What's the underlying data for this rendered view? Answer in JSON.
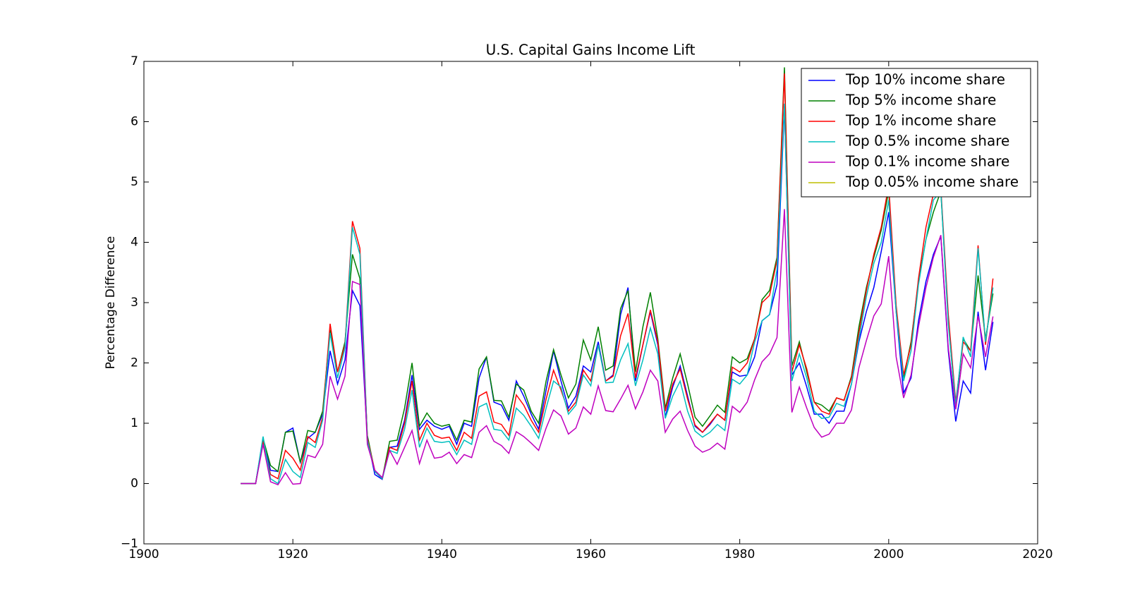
{
  "chart_data": {
    "type": "line",
    "title": "U.S. Capital Gains Income Lift",
    "ylabel": "Percentage Difference",
    "x": [
      1913,
      1914,
      1915,
      1916,
      1917,
      1918,
      1919,
      1920,
      1921,
      1922,
      1923,
      1924,
      1925,
      1926,
      1927,
      1928,
      1929,
      1930,
      1931,
      1932,
      1933,
      1934,
      1935,
      1936,
      1937,
      1938,
      1939,
      1940,
      1941,
      1942,
      1943,
      1944,
      1945,
      1946,
      1947,
      1948,
      1949,
      1950,
      1951,
      1952,
      1953,
      1954,
      1955,
      1956,
      1957,
      1958,
      1959,
      1960,
      1961,
      1962,
      1963,
      1964,
      1965,
      1966,
      1967,
      1968,
      1969,
      1970,
      1971,
      1972,
      1973,
      1974,
      1975,
      1976,
      1977,
      1978,
      1979,
      1980,
      1981,
      1982,
      1983,
      1984,
      1985,
      1986,
      1987,
      1988,
      1989,
      1990,
      1991,
      1992,
      1993,
      1994,
      1995,
      1996,
      1997,
      1998,
      1999,
      2000,
      2001,
      2002,
      2003,
      2004,
      2005,
      2006,
      2007,
      2008,
      2009,
      2010,
      2011,
      2012,
      2013,
      2014
    ],
    "series": [
      {
        "name": "Top 10% income share",
        "color": "#0000ff",
        "values": [
          0,
          0,
          0,
          0.72,
          0.22,
          0.2,
          0.85,
          0.92,
          0.35,
          0.75,
          0.85,
          1.15,
          2.2,
          1.65,
          2.05,
          3.2,
          2.95,
          0.75,
          0.15,
          0.07,
          0.6,
          0.62,
          1.05,
          1.8,
          0.9,
          1.05,
          0.95,
          0.9,
          0.95,
          0.65,
          1.0,
          0.95,
          1.75,
          2.1,
          1.35,
          1.3,
          1.05,
          1.7,
          1.45,
          1.15,
          0.9,
          1.55,
          2.2,
          1.7,
          1.25,
          1.45,
          1.95,
          1.85,
          2.35,
          1.7,
          1.8,
          2.8,
          3.25,
          1.7,
          2.3,
          2.85,
          2.3,
          1.1,
          1.6,
          1.95,
          1.45,
          0.95,
          0.85,
          0.98,
          1.15,
          1.05,
          1.85,
          1.78,
          1.8,
          2.1,
          2.7,
          2.8,
          3.3,
          6.25,
          1.8,
          2.0,
          1.6,
          1.15,
          1.15,
          1.0,
          1.2,
          1.2,
          1.65,
          2.35,
          2.85,
          3.25,
          3.85,
          4.5,
          2.85,
          1.5,
          1.75,
          2.7,
          3.35,
          3.8,
          4.1,
          2.2,
          1.03,
          1.7,
          1.5,
          2.85,
          1.88,
          2.68
        ]
      },
      {
        "name": "Top 5% income share",
        "color": "#008000",
        "values": [
          0,
          0,
          0,
          0.75,
          0.3,
          0.2,
          0.85,
          0.87,
          0.35,
          0.88,
          0.85,
          1.2,
          2.55,
          1.85,
          2.35,
          3.8,
          3.4,
          0.8,
          0.2,
          0.08,
          0.7,
          0.72,
          1.25,
          2.0,
          0.95,
          1.17,
          1.0,
          0.95,
          0.98,
          0.72,
          1.05,
          1.02,
          1.9,
          2.1,
          1.38,
          1.37,
          1.1,
          1.65,
          1.55,
          1.2,
          1.0,
          1.7,
          2.22,
          1.8,
          1.42,
          1.65,
          2.38,
          2.05,
          2.6,
          1.88,
          1.95,
          2.9,
          3.2,
          1.85,
          2.6,
          3.17,
          2.4,
          1.25,
          1.75,
          2.15,
          1.65,
          1.1,
          0.95,
          1.12,
          1.3,
          1.18,
          2.1,
          2.0,
          2.07,
          2.4,
          3.05,
          3.2,
          3.75,
          6.9,
          1.95,
          2.35,
          1.85,
          1.35,
          1.3,
          1.2,
          1.42,
          1.38,
          1.78,
          2.6,
          3.25,
          3.75,
          4.2,
          4.85,
          2.9,
          1.75,
          2.35,
          3.35,
          4.05,
          4.5,
          4.85,
          2.7,
          1.25,
          2.4,
          2.2,
          3.45,
          2.4,
          3.15
        ]
      },
      {
        "name": "Top 1% income share",
        "color": "#ff0000",
        "values": [
          0,
          0,
          0,
          0.7,
          0.15,
          0.08,
          0.55,
          0.42,
          0.22,
          0.78,
          0.68,
          1.1,
          2.65,
          1.85,
          2.3,
          4.35,
          3.9,
          0.75,
          0.22,
          0.08,
          0.6,
          0.55,
          1.0,
          1.7,
          0.72,
          1.0,
          0.8,
          0.75,
          0.77,
          0.55,
          0.85,
          0.75,
          1.45,
          1.52,
          1.02,
          0.98,
          0.8,
          1.47,
          1.3,
          1.05,
          0.85,
          1.4,
          1.88,
          1.55,
          1.2,
          1.35,
          1.88,
          1.7,
          2.3,
          1.7,
          1.78,
          2.45,
          2.82,
          1.75,
          2.3,
          2.88,
          2.35,
          1.2,
          1.65,
          1.9,
          1.4,
          0.97,
          0.85,
          1.0,
          1.15,
          1.05,
          1.93,
          1.85,
          2.0,
          2.4,
          3.0,
          3.12,
          3.7,
          6.8,
          1.85,
          2.3,
          1.9,
          1.35,
          1.2,
          1.15,
          1.42,
          1.38,
          1.75,
          2.5,
          3.2,
          3.8,
          4.25,
          4.95,
          2.95,
          1.8,
          2.3,
          3.4,
          4.25,
          4.8,
          4.9,
          2.8,
          1.35,
          2.35,
          2.2,
          3.95,
          2.3,
          3.4
        ]
      },
      {
        "name": "Top 0.5% income share",
        "color": "#00bfbf",
        "values": [
          0,
          0,
          0,
          0.78,
          0.08,
          0.0,
          0.4,
          0.2,
          0.1,
          0.68,
          0.6,
          1.05,
          2.5,
          1.75,
          2.25,
          4.25,
          3.8,
          0.72,
          0.2,
          0.08,
          0.55,
          0.5,
          0.9,
          1.55,
          0.6,
          0.92,
          0.7,
          0.68,
          0.7,
          0.48,
          0.72,
          0.65,
          1.27,
          1.33,
          0.9,
          0.88,
          0.72,
          1.25,
          1.13,
          0.95,
          0.75,
          1.25,
          1.7,
          1.6,
          1.15,
          1.3,
          1.8,
          1.62,
          2.3,
          1.67,
          1.68,
          2.05,
          2.32,
          1.62,
          2.05,
          2.58,
          2.15,
          1.08,
          1.45,
          1.7,
          1.2,
          0.87,
          0.77,
          0.85,
          0.98,
          0.88,
          1.73,
          1.65,
          1.8,
          2.35,
          2.7,
          2.8,
          3.55,
          6.3,
          1.7,
          2.15,
          1.75,
          1.2,
          1.08,
          1.1,
          1.33,
          1.28,
          1.65,
          2.4,
          3.1,
          3.65,
          4.0,
          4.7,
          2.85,
          1.7,
          2.2,
          3.3,
          4.05,
          4.7,
          4.85,
          2.65,
          1.3,
          2.43,
          2.1,
          3.9,
          2.35,
          3.25
        ]
      },
      {
        "name": "Top 0.1% income share",
        "color": "#bf00bf",
        "values": [
          0,
          0,
          0,
          0.65,
          0.03,
          -0.02,
          0.18,
          -0.01,
          0.0,
          0.47,
          0.43,
          0.65,
          1.78,
          1.4,
          1.78,
          3.35,
          3.3,
          0.65,
          0.22,
          0.1,
          0.55,
          0.32,
          0.6,
          0.88,
          0.33,
          0.72,
          0.42,
          0.44,
          0.52,
          0.33,
          0.48,
          0.43,
          0.85,
          0.96,
          0.7,
          0.63,
          0.5,
          0.86,
          0.78,
          0.67,
          0.55,
          0.92,
          1.22,
          1.12,
          0.82,
          0.92,
          1.27,
          1.15,
          1.62,
          1.21,
          1.19,
          1.4,
          1.63,
          1.24,
          1.52,
          1.88,
          1.7,
          0.85,
          1.07,
          1.2,
          0.88,
          0.62,
          0.52,
          0.57,
          0.67,
          0.57,
          1.28,
          1.18,
          1.35,
          1.72,
          2.02,
          2.15,
          2.42,
          4.55,
          1.18,
          1.6,
          1.25,
          0.93,
          0.77,
          0.82,
          1.0,
          1.0,
          1.22,
          1.92,
          2.37,
          2.78,
          2.98,
          3.77,
          2.1,
          1.42,
          1.8,
          2.6,
          3.25,
          3.75,
          4.12,
          2.25,
          1.23,
          2.15,
          1.92,
          2.78,
          2.1,
          2.77
        ]
      },
      {
        "name": "Top 0.05% income share",
        "color": "#bfbf00",
        "values": [
          null,
          null,
          null,
          null,
          null,
          null,
          null,
          null,
          null,
          null,
          null,
          null,
          null,
          null,
          null,
          null,
          null,
          null,
          null,
          null,
          null,
          null,
          null,
          null,
          null,
          null,
          null,
          null,
          null,
          null,
          null,
          null,
          null,
          null,
          null,
          null,
          null,
          null,
          null,
          null,
          null,
          null,
          null,
          null,
          null,
          null,
          null,
          null,
          null,
          null,
          null,
          null,
          null,
          null,
          null,
          null,
          null,
          null,
          null,
          null,
          null,
          null,
          null,
          null,
          null,
          null,
          null,
          null,
          null,
          null,
          null,
          null,
          null,
          null,
          null,
          null,
          null,
          null,
          null,
          null,
          null,
          null,
          null,
          null,
          null,
          null,
          null,
          null,
          null,
          null,
          null,
          null,
          null,
          null,
          null,
          null,
          null,
          null,
          null,
          null,
          null,
          null
        ]
      }
    ],
    "xlim": [
      1900,
      2020
    ],
    "xticks": [
      1900,
      1920,
      1940,
      1960,
      1980,
      2000,
      2020
    ],
    "ylim": [
      -1,
      7
    ],
    "yticks": [
      {
        "value": -1,
        "label": "−1"
      },
      0,
      1,
      2,
      3,
      4,
      5,
      6,
      7
    ],
    "grid": false,
    "legend": "upper right"
  }
}
